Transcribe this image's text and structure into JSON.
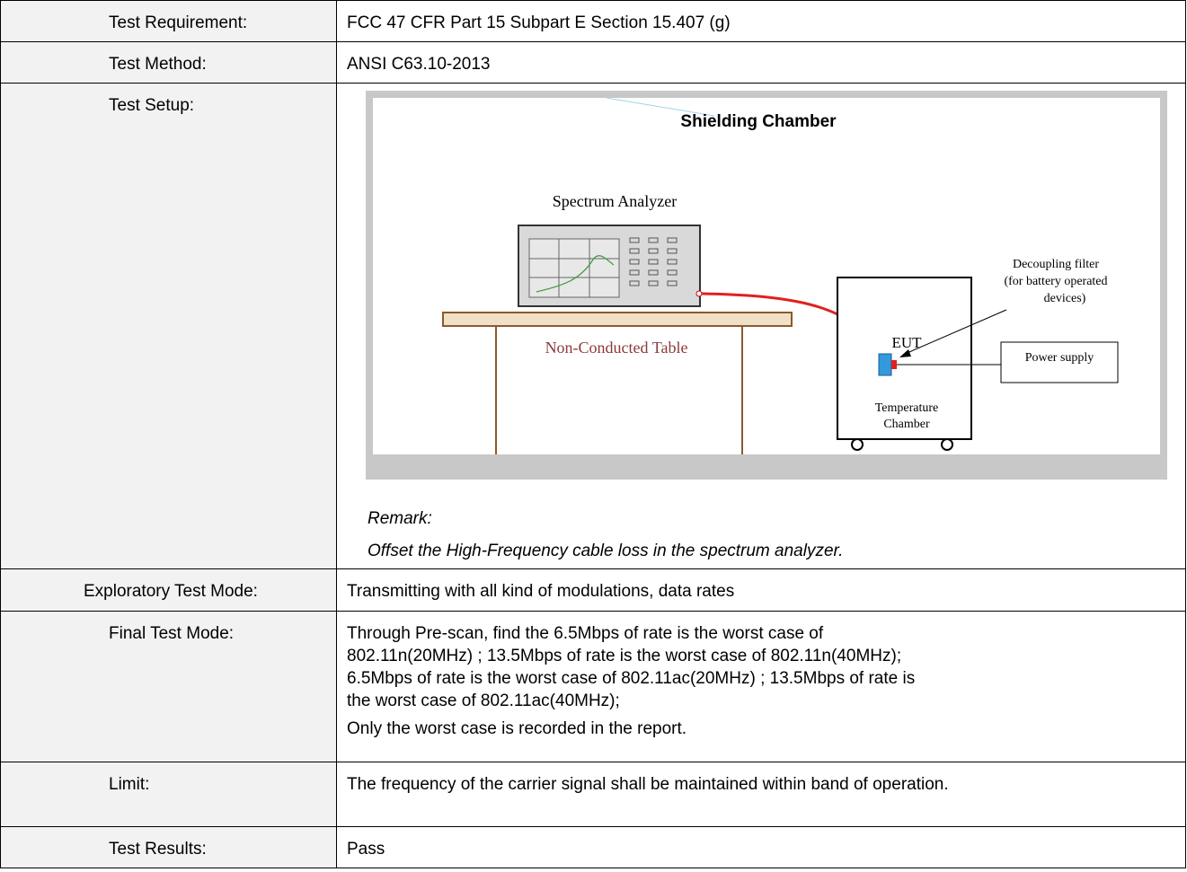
{
  "table": {
    "rows": [
      {
        "label": "Test Requirement:",
        "value": "FCC 47 CFR Part 15 Subpart E Section 15.407 (g)"
      },
      {
        "label": "Test Method:",
        "value": "ANSI C63.10-2013"
      },
      {
        "label": "Test Setup:",
        "diagram": {
          "title": "Shielding Chamber",
          "analyzer": "Spectrum Analyzer",
          "table": "Non-Conducted Table",
          "filter": [
            "Decoupling filter",
            "(for battery operated",
            "devices)"
          ],
          "eut": "EUT",
          "power": "Power supply",
          "chamber": [
            "Temperature",
            "Chamber"
          ]
        },
        "remark": [
          "Remark:",
          "Offset the High-Frequency cable loss  in the spectrum analyzer."
        ]
      },
      {
        "label": "Exploratory Test Mode:",
        "value": "Transmitting with all kind of modulations, data rates"
      },
      {
        "label": "Final Test Mode:",
        "lines": [
          "Through Pre-scan, find the 6.5Mbps of rate is the worst case of",
          "802.11n(20MHz) ; 13.5Mbps of rate is the worst case of 802.11n(40MHz);",
          "6.5Mbps of rate is the worst case of 802.11ac(20MHz) ; 13.5Mbps of rate is",
          "the worst case of 802.11ac(40MHz);"
        ],
        "note": "Only the worst case is recorded in the report."
      },
      {
        "label": "Limit:",
        "value": "The frequency of the carrier signal shall be maintained within band of operation."
      },
      {
        "label": "Test Results:",
        "value": "Pass"
      }
    ]
  }
}
